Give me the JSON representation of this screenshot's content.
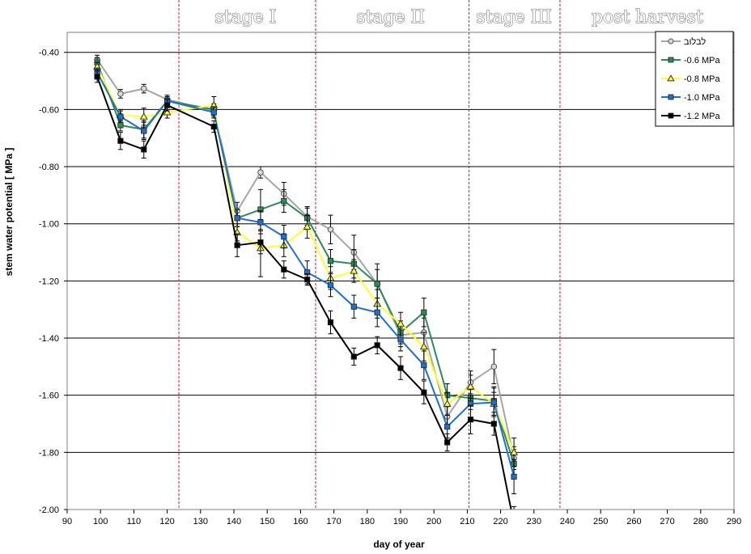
{
  "chart_data": {
    "type": "line",
    "xlabel": "day of year",
    "ylabel": "stem water potential [ MPa ]",
    "xlim": [
      90,
      290
    ],
    "ylim": [
      -2.0,
      -0.33
    ],
    "xticks": [
      90,
      100,
      110,
      120,
      130,
      140,
      150,
      160,
      170,
      180,
      190,
      200,
      210,
      220,
      230,
      240,
      250,
      260,
      270,
      280,
      290
    ],
    "xtick_labels": [
      "90",
      "100",
      "110",
      "120",
      "130",
      "140",
      "150",
      "160",
      "170",
      "180",
      "190",
      "200",
      "210",
      "220",
      "230",
      "240",
      "250",
      "260",
      "270",
      "280",
      "290"
    ],
    "yticks": [
      -0.4,
      -0.6,
      -0.8,
      -1.0,
      -1.2,
      -1.4,
      -1.6,
      -1.8,
      -2.0
    ],
    "ytick_labels": [
      "-0.40",
      "-0.60",
      "-0.80",
      "-1.00",
      "-1.20",
      "-1.40",
      "-1.60",
      "-1.80",
      "-2.00"
    ],
    "grid": "horizontal",
    "legend_position": "top-right",
    "stage_lines": [
      123.5,
      164.5,
      210.5,
      237.8
    ],
    "stage_labels": [
      {
        "text": "stage I",
        "x": 143.5
      },
      {
        "text": "stage II",
        "x": 187
      },
      {
        "text": "stage III",
        "x": 224
      },
      {
        "text": "post harvest",
        "x": 264
      }
    ],
    "series": [
      {
        "name": "לבלוב",
        "color": "#a6a6a6",
        "marker": "circle",
        "x": [
          99,
          106,
          113,
          120,
          134,
          141,
          148,
          155,
          162,
          169,
          176,
          183,
          190,
          197,
          204,
          211,
          218,
          224
        ],
        "y": [
          -0.425,
          -0.545,
          -0.527,
          -0.565,
          -0.605,
          -0.955,
          -0.82,
          -0.895,
          -0.975,
          -1.02,
          -1.1,
          -1.21,
          -1.39,
          -1.38,
          -1.675,
          -1.555,
          -1.5,
          -1.82
        ],
        "err": [
          0.015,
          0.015,
          0.015,
          0.015,
          0.02,
          0.03,
          0.02,
          0.04,
          0.03,
          0.05,
          0.06,
          0.07,
          0.04,
          0.05,
          0.04,
          0.04,
          0.06,
          0.04
        ]
      },
      {
        "name": "-0.6 MPa",
        "color": "#2e8b57",
        "marker": "square",
        "x": [
          99,
          106,
          113,
          120,
          134,
          141,
          148,
          155,
          162,
          169,
          176,
          183,
          190,
          197,
          204,
          211,
          218,
          224
        ],
        "y": [
          -0.435,
          -0.655,
          -0.67,
          -0.57,
          -0.6,
          -0.98,
          -0.95,
          -0.92,
          -0.98,
          -1.13,
          -1.14,
          -1.21,
          -1.38,
          -1.31,
          -1.6,
          -1.61,
          -1.62,
          -1.84
        ],
        "err": [
          0.015,
          0.02,
          0.03,
          0.015,
          0.02,
          0.03,
          0.07,
          0.04,
          0.04,
          0.04,
          0.05,
          0.05,
          0.04,
          0.05,
          0.04,
          0.04,
          0.05,
          0.05
        ]
      },
      {
        "name": "-0.8 MPa",
        "color": "#ffff33",
        "marker": "triangle",
        "x": [
          99,
          106,
          113,
          120,
          134,
          141,
          148,
          155,
          162,
          169,
          176,
          183,
          190,
          197,
          204,
          211,
          218,
          224
        ],
        "y": [
          -0.45,
          -0.62,
          -0.625,
          -0.61,
          -0.585,
          -1.03,
          -1.085,
          -1.075,
          -1.01,
          -1.19,
          -1.165,
          -1.28,
          -1.35,
          -1.43,
          -1.63,
          -1.57,
          -1.63,
          -1.8
        ],
        "err": [
          0.015,
          0.02,
          0.03,
          0.02,
          0.03,
          0.03,
          0.1,
          0.04,
          0.04,
          0.04,
          0.04,
          0.05,
          0.04,
          0.05,
          0.04,
          0.04,
          0.04,
          0.05
        ]
      },
      {
        "name": "-1.0 MPa",
        "color": "#1f6fd0",
        "marker": "square",
        "x": [
          99,
          106,
          113,
          120,
          134,
          141,
          148,
          155,
          162,
          169,
          176,
          183,
          190,
          197,
          204,
          211,
          218,
          224
        ],
        "y": [
          -0.47,
          -0.625,
          -0.675,
          -0.57,
          -0.61,
          -0.98,
          -0.995,
          -1.045,
          -1.17,
          -1.215,
          -1.29,
          -1.31,
          -1.405,
          -1.495,
          -1.71,
          -1.63,
          -1.625,
          -1.885
        ],
        "err": [
          0.015,
          0.02,
          0.03,
          0.015,
          0.02,
          0.03,
          0.04,
          0.04,
          0.04,
          0.04,
          0.04,
          0.05,
          0.04,
          0.05,
          0.04,
          0.05,
          0.05,
          0.06
        ]
      },
      {
        "name": "-1.2 MPa",
        "color": "#000000",
        "marker": "square",
        "x": [
          99,
          106,
          113,
          120,
          134,
          141,
          148,
          155,
          162,
          169,
          176,
          183,
          190,
          197,
          204,
          211,
          218,
          224
        ],
        "y": [
          -0.485,
          -0.71,
          -0.74,
          -0.585,
          -0.66,
          -1.075,
          -1.065,
          -1.16,
          -1.195,
          -1.345,
          -1.465,
          -1.425,
          -1.505,
          -1.59,
          -1.765,
          -1.685,
          -1.7,
          -2.05
        ],
        "err": [
          0.02,
          0.03,
          0.03,
          0.02,
          0.02,
          0.04,
          0.04,
          0.03,
          0.02,
          0.04,
          0.03,
          0.03,
          0.04,
          0.04,
          0.03,
          0.05,
          0.04,
          0.06
        ]
      }
    ]
  }
}
